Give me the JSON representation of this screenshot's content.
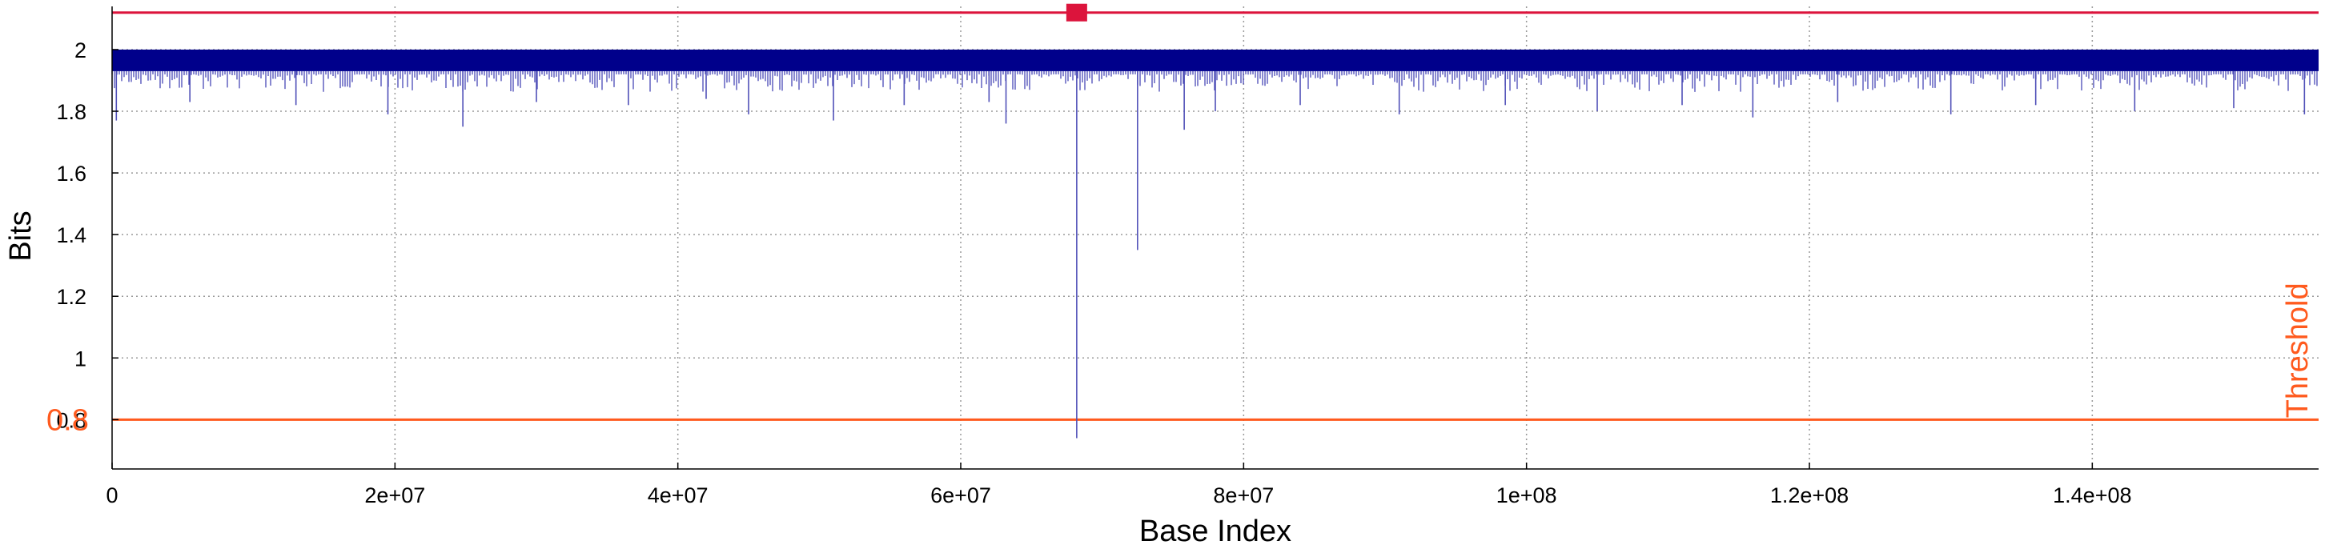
{
  "chart_data": {
    "type": "line",
    "title": "",
    "xlabel": "Base Index",
    "ylabel": "Bits",
    "xlim": [
      0,
      156000000
    ],
    "ylim": [
      0.64,
      2.14
    ],
    "grid": true,
    "x_ticks": [
      {
        "value": 0,
        "label": "0"
      },
      {
        "value": 20000000,
        "label": "2e+07"
      },
      {
        "value": 40000000,
        "label": "4e+07"
      },
      {
        "value": 60000000,
        "label": "6e+07"
      },
      {
        "value": 80000000,
        "label": "8e+07"
      },
      {
        "value": 100000000,
        "label": "1e+08"
      },
      {
        "value": 120000000,
        "label": "1.2e+08"
      },
      {
        "value": 140000000,
        "label": "1.4e+08"
      }
    ],
    "y_ticks": [
      {
        "value": 0.8,
        "label": "0.8"
      },
      {
        "value": 1.0,
        "label": "1"
      },
      {
        "value": 1.2,
        "label": "1.2"
      },
      {
        "value": 1.4,
        "label": "1.4"
      },
      {
        "value": 1.6,
        "label": "1.6"
      },
      {
        "value": 1.8,
        "label": "1.8"
      },
      {
        "value": 2.0,
        "label": "2"
      }
    ],
    "series": [
      {
        "color": "#00008b",
        "band": {
          "x_start": 0,
          "x_end": 156000000,
          "y_low": 1.93,
          "y_high": 2.0
        },
        "dips": [
          {
            "x": 300000,
            "y": 1.77
          },
          {
            "x": 5500000,
            "y": 1.83
          },
          {
            "x": 13000000,
            "y": 1.82
          },
          {
            "x": 19500000,
            "y": 1.79
          },
          {
            "x": 24800000,
            "y": 1.75
          },
          {
            "x": 30000000,
            "y": 1.83
          },
          {
            "x": 36500000,
            "y": 1.82
          },
          {
            "x": 42000000,
            "y": 1.84
          },
          {
            "x": 45000000,
            "y": 1.79
          },
          {
            "x": 51000000,
            "y": 1.77
          },
          {
            "x": 56000000,
            "y": 1.82
          },
          {
            "x": 62000000,
            "y": 1.83
          },
          {
            "x": 63200000,
            "y": 1.76
          },
          {
            "x": 68200000,
            "y": 0.74
          },
          {
            "x": 72500000,
            "y": 1.35
          },
          {
            "x": 75800000,
            "y": 1.74
          },
          {
            "x": 78000000,
            "y": 1.8
          },
          {
            "x": 84000000,
            "y": 1.82
          },
          {
            "x": 91000000,
            "y": 1.79
          },
          {
            "x": 98500000,
            "y": 1.82
          },
          {
            "x": 105000000,
            "y": 1.8
          },
          {
            "x": 111000000,
            "y": 1.82
          },
          {
            "x": 116000000,
            "y": 1.78
          },
          {
            "x": 122000000,
            "y": 1.83
          },
          {
            "x": 130000000,
            "y": 1.79
          },
          {
            "x": 136000000,
            "y": 1.82
          },
          {
            "x": 143000000,
            "y": 1.8
          },
          {
            "x": 150000000,
            "y": 1.81
          },
          {
            "x": 155000000,
            "y": 1.79
          }
        ]
      },
      {
        "color": "#dc143c",
        "y": 2.12,
        "marker": {
          "x": 68200000,
          "y": 2.12
        }
      }
    ],
    "threshold": {
      "label": "Threshold",
      "value_label": "0.8",
      "y": 0.8,
      "color": "#ff5a1e"
    }
  }
}
